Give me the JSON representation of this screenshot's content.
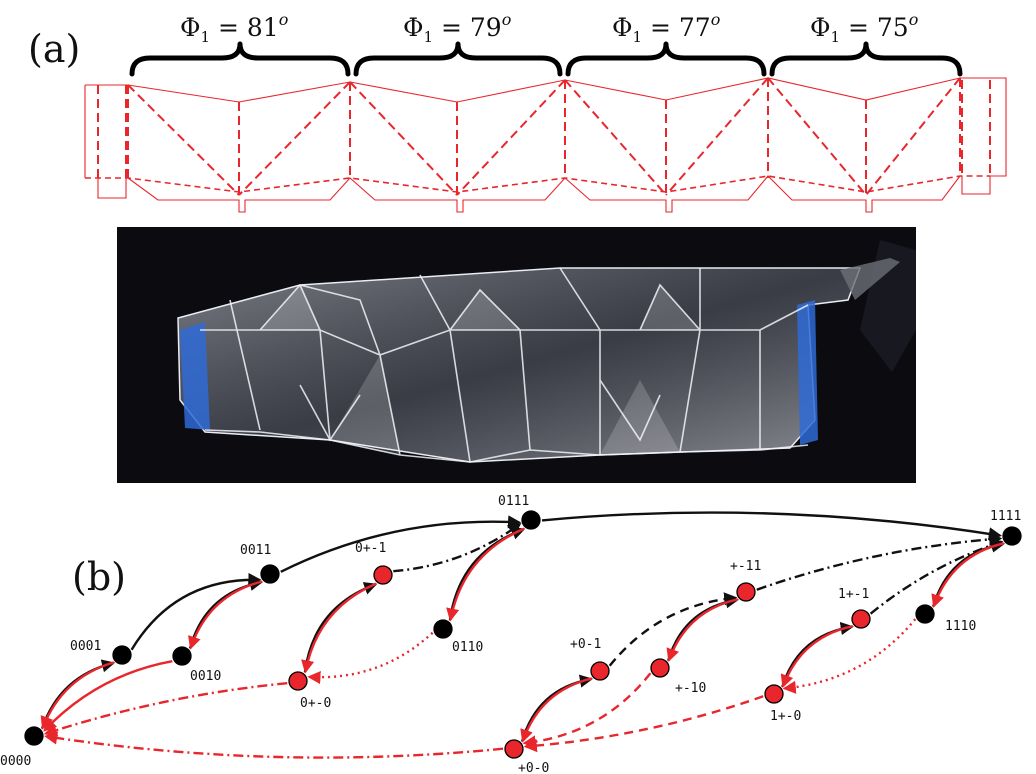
{
  "panels": {
    "a_label": "(a)",
    "b_label": "(b)"
  },
  "segments": [
    {
      "symbol": "Φ",
      "sub": "1",
      "value": " = 81",
      "sup": "o"
    },
    {
      "symbol": "Φ",
      "sub": "1",
      "value": " = 79",
      "sup": "o"
    },
    {
      "symbol": "Φ",
      "sub": "1",
      "value": " = 77",
      "sup": "o"
    },
    {
      "symbol": "Φ",
      "sub": "1",
      "value": " = 75",
      "sup": "o"
    }
  ],
  "colors": {
    "crease": "#e8262c",
    "stable_node": "#000000",
    "red_node": "#e8262c",
    "black_arrow": "#111111",
    "red_arrow": "#e8262c",
    "photo_background": "#0b0b10",
    "tape": "#2f6bd6"
  },
  "graph": {
    "nodes": [
      {
        "id": "0000",
        "label": "0000",
        "color": "black"
      },
      {
        "id": "0001",
        "label": "0001",
        "color": "black"
      },
      {
        "id": "0010",
        "label": "0010",
        "color": "black"
      },
      {
        "id": "0011",
        "label": "0011",
        "color": "black"
      },
      {
        "id": "0p_m1",
        "label": "0+-1",
        "color": "red"
      },
      {
        "id": "0p_m0",
        "label": "0+-0",
        "color": "red"
      },
      {
        "id": "0110",
        "label": "0110",
        "color": "black"
      },
      {
        "id": "0111",
        "label": "0111",
        "color": "black"
      },
      {
        "id": "p0m1",
        "label": "+0-1",
        "color": "red"
      },
      {
        "id": "p0m0",
        "label": "+0-0",
        "color": "red"
      },
      {
        "id": "pm11",
        "label": "+-11",
        "color": "red"
      },
      {
        "id": "pm10",
        "label": "+-10",
        "color": "red"
      },
      {
        "id": "1pm1",
        "label": "1+-1",
        "color": "red"
      },
      {
        "id": "1pm0",
        "label": "1+-0",
        "color": "red"
      },
      {
        "id": "1110",
        "label": "1110",
        "color": "black"
      },
      {
        "id": "1111",
        "label": "1111",
        "color": "black"
      }
    ],
    "edges": [
      {
        "from": "0000",
        "to": "0001",
        "color": "black",
        "style": "solid"
      },
      {
        "from": "0001",
        "to": "0011",
        "color": "black",
        "style": "solid"
      },
      {
        "from": "0010",
        "to": "0011",
        "color": "black",
        "style": "solid"
      },
      {
        "from": "0011",
        "to": "0111",
        "color": "black",
        "style": "solid"
      },
      {
        "from": "0111",
        "to": "1111",
        "color": "black",
        "style": "solid"
      },
      {
        "from": "0p_m0",
        "to": "0p_m1",
        "color": "black",
        "style": "solid"
      },
      {
        "from": "0110",
        "to": "0111",
        "color": "black",
        "style": "solid"
      },
      {
        "from": "p0m0",
        "to": "p0m1",
        "color": "black",
        "style": "solid"
      },
      {
        "from": "pm10",
        "to": "pm11",
        "color": "black",
        "style": "solid"
      },
      {
        "from": "1pm0",
        "to": "1pm1",
        "color": "black",
        "style": "solid"
      },
      {
        "from": "1110",
        "to": "1111",
        "color": "black",
        "style": "solid"
      },
      {
        "from": "0p_m1",
        "to": "0111",
        "color": "black",
        "style": "dashdot"
      },
      {
        "from": "p0m1",
        "to": "pm11",
        "color": "black",
        "style": "dashed"
      },
      {
        "from": "pm11",
        "to": "1111",
        "color": "black",
        "style": "dashdot"
      },
      {
        "from": "1pm1",
        "to": "1111",
        "color": "black",
        "style": "dashdot"
      },
      {
        "from": "0001",
        "to": "0000",
        "color": "red",
        "style": "solid"
      },
      {
        "from": "0011",
        "to": "0010",
        "color": "red",
        "style": "solid"
      },
      {
        "from": "0010",
        "to": "0000",
        "color": "red",
        "style": "solid"
      },
      {
        "from": "0p_m1",
        "to": "0p_m0",
        "color": "red",
        "style": "solid"
      },
      {
        "from": "0111",
        "to": "0110",
        "color": "red",
        "style": "solid"
      },
      {
        "from": "0110",
        "to": "0p_m0",
        "color": "red",
        "style": "dotted"
      },
      {
        "from": "0p_m0",
        "to": "0000",
        "color": "red",
        "style": "dashdot"
      },
      {
        "from": "p0m1",
        "to": "p0m0",
        "color": "red",
        "style": "solid"
      },
      {
        "from": "p0m0",
        "to": "0000",
        "color": "red",
        "style": "dashdot"
      },
      {
        "from": "pm11",
        "to": "pm10",
        "color": "red",
        "style": "solid"
      },
      {
        "from": "pm10",
        "to": "p0m0",
        "color": "red",
        "style": "dashed"
      },
      {
        "from": "1pm1",
        "to": "1pm0",
        "color": "red",
        "style": "solid"
      },
      {
        "from": "1pm0",
        "to": "p0m0",
        "color": "red",
        "style": "dashed"
      },
      {
        "from": "1111",
        "to": "1110",
        "color": "red",
        "style": "solid"
      },
      {
        "from": "1110",
        "to": "1pm0",
        "color": "red",
        "style": "dotted"
      }
    ]
  }
}
